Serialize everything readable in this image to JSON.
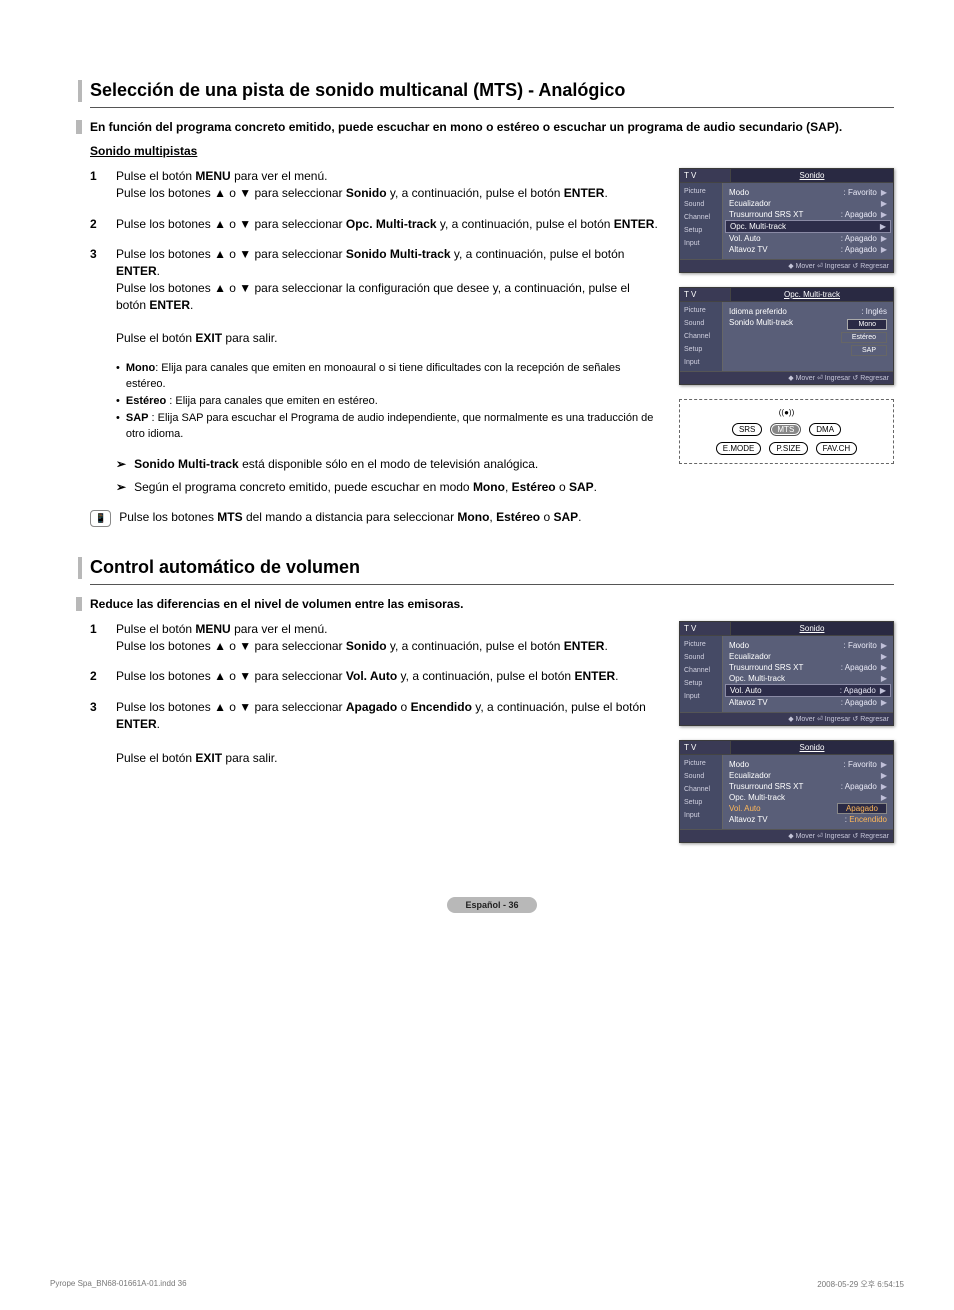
{
  "section1": {
    "title": "Selección de una pista de sonido multicanal (MTS) - Analógico",
    "intro": "En función del programa concreto emitido, puede escuchar en mono o estéreo o escuchar un programa de audio secundario (SAP).",
    "subhead": "Sonido multipistas",
    "steps": [
      {
        "num": "1",
        "html": "Pulse el botón <b>MENU</b> para ver el menú.<br>Pulse los botones ▲ o ▼ para seleccionar <b>Sonido</b> y, a continuación, pulse el botón <b>ENTER</b>."
      },
      {
        "num": "2",
        "html": "Pulse los botones ▲ o ▼ para seleccionar <b>Opc. Multi-track</b> y, a continuación, pulse el botón <b>ENTER</b>."
      },
      {
        "num": "3",
        "html": "Pulse los botones ▲ o ▼ para seleccionar <b>Sonido Multi-track</b> y, a continuación, pulse el botón <b>ENTER</b>.<br>Pulse los botones ▲ o ▼ para seleccionar la configuración que desee y, a continuación, pulse el botón <b>ENTER</b>.<br><br>Pulse el botón <b>EXIT</b> para salir."
      }
    ],
    "bullets": [
      {
        "t": "Mono",
        "d": ": Elija para canales que emiten en monoaural o si tiene dificultades con la recepción de señales estéreo."
      },
      {
        "t": "Estéreo",
        "d": " : Elija para canales que emiten en estéreo."
      },
      {
        "t": "SAP",
        "d": " : Elija SAP para escuchar el Programa de audio independiente, que normalmente es una traducción de otro idioma."
      }
    ],
    "notes": [
      "<b>Sonido Multi-track</b> está disponible sólo en el modo de televisión analógica.",
      "Según el programa concreto emitido, puede escuchar en modo <b>Mono</b>, <b>Estéreo</b> o <b>SAP</b>."
    ],
    "remoteTip": "Pulse los botones <b>MTS</b> del mando a distancia para seleccionar <b>Mono</b>, <b>Estéreo</b> o <b>SAP</b>."
  },
  "section2": {
    "title": "Control automático de volumen",
    "intro": "Reduce las diferencias en el nivel de volumen entre las emisoras.",
    "steps": [
      {
        "num": "1",
        "html": "Pulse el botón <b>MENU</b> para ver el menú.<br>Pulse los botones ▲ o ▼ para seleccionar <b>Sonido</b> y, a continuación, pulse el botón <b>ENTER</b>."
      },
      {
        "num": "2",
        "html": "Pulse los botones ▲ o ▼ para seleccionar <b>Vol. Auto</b> y, a continuación, pulse el botón <b>ENTER</b>."
      },
      {
        "num": "3",
        "html": "Pulse los botones ▲ o ▼ para seleccionar <b>Apagado</b> o <b>Encendido</b> y, a continuación, pulse el botón <b>ENTER</b>.<br><br>Pulse el botón <b>EXIT</b> para salir."
      }
    ]
  },
  "osd": {
    "tv": "T V",
    "footer": "◆ Mover  ⏎ Ingresar  ↺ Regresar",
    "side": [
      "Picture",
      "Sound",
      "Channel",
      "Setup",
      "Input"
    ],
    "screen1": {
      "title": "Sonido",
      "rows": [
        {
          "l": "Modo",
          "v": ": Favorito",
          "chev": true
        },
        {
          "l": "Ecualizador",
          "v": "",
          "chev": true
        },
        {
          "l": "Trusurround SRS XT",
          "v": ": Apagado",
          "chev": true
        },
        {
          "l": "Opc. Multi-track",
          "v": "",
          "chev": true,
          "sel": true
        },
        {
          "l": "Vol. Auto",
          "v": ": Apagado",
          "chev": true
        },
        {
          "l": "Altavoz TV",
          "v": ": Apagado",
          "chev": true
        }
      ]
    },
    "screen2": {
      "title": "Opc. Multi-track",
      "prefLang": "Idioma preferido",
      "prefLangVal": ": Inglés",
      "sndMT": "Sonido Multi-track",
      "opts": [
        "Mono",
        "Estéreo",
        "SAP"
      ]
    },
    "screen3": {
      "title": "Sonido",
      "rows": [
        {
          "l": "Modo",
          "v": ": Favorito",
          "chev": true
        },
        {
          "l": "Ecualizador",
          "v": "",
          "chev": true
        },
        {
          "l": "Trusurround SRS XT",
          "v": ": Apagado",
          "chev": true
        },
        {
          "l": "Opc. Multi-track",
          "v": "",
          "chev": true
        },
        {
          "l": "Vol. Auto",
          "v": ": Apagado",
          "chev": true,
          "sel": true
        },
        {
          "l": "Altavoz TV",
          "v": ": Apagado",
          "chev": true
        }
      ]
    },
    "screen4": {
      "title": "Sonido",
      "rows": [
        {
          "l": "Modo",
          "v": ": Favorito",
          "chev": true
        },
        {
          "l": "Ecualizador",
          "v": "",
          "chev": true
        },
        {
          "l": "Trusurround SRS XT",
          "v": ": Apagado",
          "chev": true
        },
        {
          "l": "Opc. Multi-track",
          "v": "",
          "chev": true
        },
        {
          "l": "Vol. Auto",
          "v": "",
          "chev": false,
          "selorange": true
        },
        {
          "l": "Altavoz TV",
          "v": "",
          "chev": false
        }
      ],
      "dropdown": [
        "Apagado",
        "Encendido"
      ]
    }
  },
  "remoteButtons": {
    "row1": [
      "SRS",
      "MTS",
      "DMA"
    ],
    "row2": [
      "E.MODE",
      "P.SIZE",
      "FAV.CH"
    ],
    "hl": "MTS"
  },
  "pageBadge": "Español - 36",
  "footer": {
    "left": "Pyrope Spa_BN68-01661A-01.indd   36",
    "right": "2008-05-29   오후 6:54:15"
  }
}
